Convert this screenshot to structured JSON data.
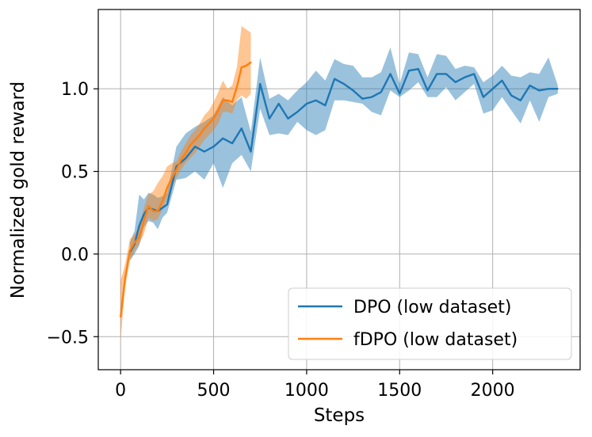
{
  "chart_data": {
    "type": "line",
    "xlabel": "Steps",
    "ylabel": "Normalized gold reward",
    "xlim": [
      -120,
      2470
    ],
    "ylim": [
      -0.7,
      1.48
    ],
    "xticks": [
      0,
      500,
      1000,
      1500,
      2000
    ],
    "yticks": [
      -0.5,
      0.0,
      0.5,
      1.0
    ],
    "ytick_labels": [
      "−0.5",
      "0.0",
      "0.5",
      "1.0"
    ],
    "grid": true,
    "legend_position": "lower-right",
    "colors": {
      "DPO": "#1f77b4",
      "fDPO": "#ff7f0e"
    },
    "series": [
      {
        "name": "DPO (low dataset)",
        "x": [
          50,
          75,
          100,
          125,
          150,
          175,
          200,
          225,
          250,
          300,
          350,
          400,
          450,
          500,
          550,
          600,
          650,
          700,
          750,
          800,
          850,
          900,
          950,
          1000,
          1050,
          1100,
          1150,
          1200,
          1250,
          1300,
          1350,
          1400,
          1450,
          1500,
          1550,
          1600,
          1650,
          1700,
          1750,
          1800,
          1850,
          1900,
          1950,
          2000,
          2050,
          2100,
          2150,
          2200,
          2250,
          2300,
          2350
        ],
        "y": [
          0.01,
          0.06,
          0.17,
          0.24,
          0.28,
          0.27,
          0.26,
          0.28,
          0.3,
          0.53,
          0.58,
          0.65,
          0.62,
          0.65,
          0.7,
          0.67,
          0.76,
          0.62,
          1.03,
          0.82,
          0.91,
          0.82,
          0.86,
          0.91,
          0.93,
          0.9,
          1.06,
          1.03,
          0.99,
          0.94,
          0.95,
          0.98,
          1.09,
          0.97,
          1.11,
          1.12,
          0.99,
          1.09,
          1.09,
          1.04,
          1.07,
          1.09,
          0.95,
          1.0,
          1.05,
          0.96,
          0.93,
          1.02,
          0.99,
          1.0,
          1.0
        ],
        "lower": [
          -0.04,
          0.0,
          0.05,
          0.16,
          0.2,
          0.19,
          0.15,
          0.22,
          0.25,
          0.45,
          0.46,
          0.5,
          0.45,
          0.55,
          0.4,
          0.55,
          0.6,
          0.5,
          0.88,
          0.72,
          0.73,
          0.72,
          0.8,
          0.75,
          0.72,
          0.75,
          0.93,
          0.93,
          0.92,
          0.91,
          0.86,
          0.84,
          0.99,
          0.95,
          0.99,
          1.04,
          0.95,
          0.95,
          1.01,
          0.93,
          0.98,
          1.03,
          0.85,
          0.87,
          0.95,
          0.87,
          0.79,
          0.93,
          0.8,
          0.95,
          0.97
        ],
        "upper": [
          0.07,
          0.14,
          0.36,
          0.33,
          0.37,
          0.36,
          0.34,
          0.35,
          0.37,
          0.65,
          0.73,
          0.77,
          0.8,
          0.84,
          0.95,
          0.9,
          0.95,
          0.74,
          1.19,
          0.94,
          0.97,
          0.93,
          0.99,
          1.04,
          1.11,
          1.05,
          1.18,
          1.15,
          1.14,
          1.07,
          1.07,
          1.1,
          1.25,
          1.03,
          1.22,
          1.21,
          1.07,
          1.21,
          1.2,
          1.12,
          1.14,
          1.13,
          1.04,
          1.08,
          1.14,
          1.08,
          1.07,
          1.1,
          1.09,
          1.19,
          1.02
        ]
      },
      {
        "name": "fDPO (low dataset)",
        "x": [
          0,
          25,
          50,
          75,
          100,
          125,
          150,
          175,
          200,
          225,
          250,
          275,
          300,
          325,
          350,
          375,
          400,
          425,
          450,
          475,
          500,
          525,
          550,
          575,
          600,
          625,
          650,
          675,
          700
        ],
        "y": [
          -0.38,
          -0.14,
          0.02,
          0.07,
          0.1,
          0.2,
          0.29,
          0.26,
          0.26,
          0.32,
          0.4,
          0.46,
          0.51,
          0.57,
          0.61,
          0.66,
          0.69,
          0.72,
          0.76,
          0.79,
          0.82,
          0.87,
          0.93,
          0.93,
          0.92,
          1.01,
          1.13,
          1.14,
          1.16
        ],
        "lower": [
          -0.52,
          -0.2,
          -0.04,
          0.02,
          0.06,
          0.12,
          0.22,
          0.2,
          0.21,
          0.27,
          0.34,
          0.4,
          0.46,
          0.51,
          0.55,
          0.58,
          0.61,
          0.65,
          0.69,
          0.72,
          0.75,
          0.79,
          0.86,
          0.86,
          0.85,
          0.93,
          0.96,
          0.94,
          0.97
        ],
        "upper": [
          -0.16,
          -0.06,
          0.09,
          0.12,
          0.16,
          0.28,
          0.36,
          0.38,
          0.43,
          0.47,
          0.53,
          0.55,
          0.56,
          0.62,
          0.67,
          0.72,
          0.75,
          0.79,
          0.84,
          0.87,
          0.92,
          0.98,
          1.05,
          1.0,
          1.02,
          1.13,
          1.38,
          1.36,
          1.34
        ]
      }
    ]
  }
}
